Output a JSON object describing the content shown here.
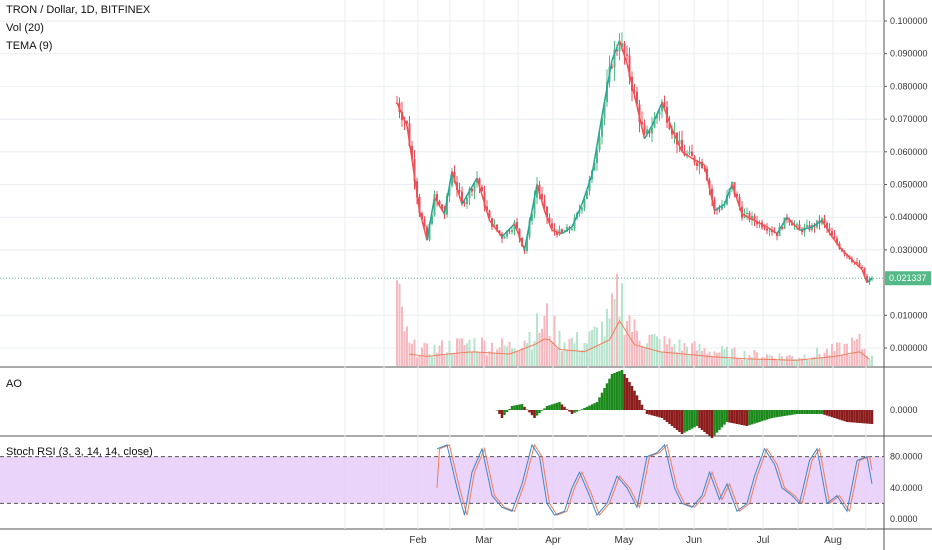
{
  "header": {
    "symbol": "TRON / Dollar, 1D, BITFINEX",
    "vol_label": "Vol (20)",
    "tema_label": "TEMA (9)",
    "ao_label": "AO",
    "stoch_label": "Stoch RSI (3, 3, 14, 14, close)"
  },
  "colors": {
    "up": "#53b987",
    "down": "#eb4d5c",
    "tema_up": "#26a69a",
    "tema_down": "#ef5350",
    "vol_ma": "#ef7d5c",
    "ao_up": "#1b8a1b",
    "ao_down": "#8b1a1a",
    "rsi_band": "#e6c9f7",
    "stoch_k": "#3e86c6",
    "stoch_d": "#ef7d5c",
    "last_price_bg": "#53b987",
    "grid": "#e8eef2"
  },
  "chart_data": [
    {
      "type": "candlestick",
      "title": "TRON / Dollar, 1D, BITFINEX",
      "x_ticks": [
        "Feb",
        "Mar",
        "Apr",
        "May",
        "Jun",
        "Jul",
        "Aug"
      ],
      "y_ticks": [
        "0.100000",
        "0.090000",
        "0.080000",
        "0.070000",
        "0.060000",
        "0.050000",
        "0.040000",
        "0.030000",
        "0.010000",
        "0.000000"
      ],
      "ylim": [
        0,
        0.104
      ],
      "last_price": "0.021337",
      "last_price_value": 0.021337,
      "x_range_days": [
        0,
        204
      ],
      "close_series_day_step": 1,
      "anchors": [
        [
          0,
          0.075
        ],
        [
          4,
          0.068
        ],
        [
          9,
          0.042
        ],
        [
          12,
          0.033
        ],
        [
          15,
          0.046
        ],
        [
          19,
          0.041
        ],
        [
          22,
          0.054
        ],
        [
          26,
          0.044
        ],
        [
          32,
          0.052
        ],
        [
          37,
          0.039
        ],
        [
          42,
          0.034
        ],
        [
          47,
          0.038
        ],
        [
          51,
          0.03
        ],
        [
          56,
          0.05
        ],
        [
          59,
          0.042
        ],
        [
          62,
          0.036
        ],
        [
          66,
          0.035
        ],
        [
          70,
          0.037
        ],
        [
          74,
          0.044
        ],
        [
          78,
          0.053
        ],
        [
          82,
          0.071
        ],
        [
          86,
          0.088
        ],
        [
          89,
          0.094
        ],
        [
          92,
          0.087
        ],
        [
          96,
          0.074
        ],
        [
          99,
          0.064
        ],
        [
          102,
          0.068
        ],
        [
          106,
          0.075
        ],
        [
          110,
          0.067
        ],
        [
          114,
          0.06
        ],
        [
          118,
          0.058
        ],
        [
          123,
          0.056
        ],
        [
          127,
          0.042
        ],
        [
          131,
          0.044
        ],
        [
          134,
          0.05
        ],
        [
          138,
          0.041
        ],
        [
          143,
          0.039
        ],
        [
          148,
          0.037
        ],
        [
          152,
          0.035
        ],
        [
          156,
          0.04
        ],
        [
          161,
          0.036
        ],
        [
          166,
          0.037
        ],
        [
          170,
          0.039
        ],
        [
          174,
          0.034
        ],
        [
          178,
          0.03
        ],
        [
          182,
          0.027
        ],
        [
          186,
          0.024
        ],
        [
          188,
          0.02
        ],
        [
          190,
          0.021337
        ]
      ]
    },
    {
      "type": "bar",
      "name": "Vol (20)",
      "note_values": "relative volume heights 0-1",
      "anchors": [
        [
          0,
          0.9
        ],
        [
          5,
          0.25
        ],
        [
          12,
          0.2
        ],
        [
          20,
          0.25
        ],
        [
          30,
          0.3
        ],
        [
          45,
          0.25
        ],
        [
          55,
          0.45
        ],
        [
          60,
          0.6
        ],
        [
          65,
          0.35
        ],
        [
          75,
          0.3
        ],
        [
          85,
          0.55
        ],
        [
          89,
          0.95
        ],
        [
          95,
          0.45
        ],
        [
          105,
          0.3
        ],
        [
          115,
          0.25
        ],
        [
          125,
          0.2
        ],
        [
          140,
          0.15
        ],
        [
          160,
          0.12
        ],
        [
          175,
          0.2
        ],
        [
          185,
          0.3
        ],
        [
          190,
          0.1
        ]
      ]
    },
    {
      "type": "bar",
      "name": "AO",
      "y_ticks": [
        "0.0000"
      ],
      "anchors": [
        [
          0,
          0
        ],
        [
          40,
          0
        ],
        [
          42,
          -0.2
        ],
        [
          46,
          0.1
        ],
        [
          50,
          0.15
        ],
        [
          55,
          -0.2
        ],
        [
          60,
          0.1
        ],
        [
          65,
          0.2
        ],
        [
          70,
          -0.1
        ],
        [
          75,
          0.05
        ],
        [
          80,
          0.2
        ],
        [
          86,
          0.9
        ],
        [
          90,
          1.0
        ],
        [
          94,
          0.6
        ],
        [
          100,
          -0.1
        ],
        [
          106,
          -0.2
        ],
        [
          114,
          -0.6
        ],
        [
          120,
          -0.4
        ],
        [
          126,
          -0.7
        ],
        [
          132,
          -0.3
        ],
        [
          140,
          -0.4
        ],
        [
          150,
          -0.2
        ],
        [
          160,
          -0.1
        ],
        [
          170,
          -0.1
        ],
        [
          180,
          -0.3
        ],
        [
          190,
          -0.35
        ]
      ]
    },
    {
      "type": "line",
      "name": "Stoch RSI (3, 3, 14, 14, close)",
      "y_ticks": [
        "80.0000",
        "40.0000",
        "0.0000"
      ],
      "ylim": [
        0,
        100
      ],
      "band": [
        20,
        80
      ],
      "anchors": [
        [
          0,
          90
        ],
        [
          4,
          95
        ],
        [
          8,
          40
        ],
        [
          11,
          5
        ],
        [
          14,
          60
        ],
        [
          18,
          90
        ],
        [
          22,
          30
        ],
        [
          26,
          15
        ],
        [
          30,
          10
        ],
        [
          34,
          45
        ],
        [
          38,
          95
        ],
        [
          41,
          80
        ],
        [
          44,
          20
        ],
        [
          47,
          5
        ],
        [
          51,
          10
        ],
        [
          54,
          40
        ],
        [
          57,
          60
        ],
        [
          61,
          30
        ],
        [
          64,
          5
        ],
        [
          68,
          20
        ],
        [
          72,
          55
        ],
        [
          76,
          40
        ],
        [
          80,
          15
        ],
        [
          84,
          80
        ],
        [
          88,
          85
        ],
        [
          91,
          95
        ],
        [
          95,
          40
        ],
        [
          98,
          20
        ],
        [
          102,
          15
        ],
        [
          106,
          30
        ],
        [
          109,
          60
        ],
        [
          113,
          25
        ],
        [
          116,
          45
        ],
        [
          120,
          10
        ],
        [
          124,
          20
        ],
        [
          127,
          55
        ],
        [
          131,
          90
        ],
        [
          135,
          70
        ],
        [
          138,
          40
        ],
        [
          142,
          30
        ],
        [
          145,
          20
        ],
        [
          149,
          75
        ],
        [
          152,
          90
        ],
        [
          156,
          20
        ],
        [
          160,
          30
        ],
        [
          164,
          10
        ],
        [
          168,
          75
        ],
        [
          172,
          80
        ],
        [
          176,
          10
        ],
        [
          180,
          8
        ],
        [
          184,
          5
        ],
        [
          188,
          10
        ],
        [
          190,
          40
        ]
      ]
    }
  ]
}
